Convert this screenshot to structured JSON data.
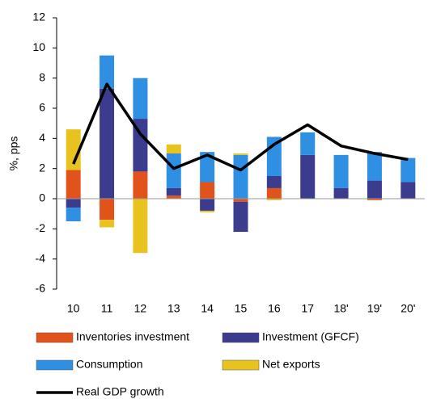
{
  "chart_data": {
    "type": "bar",
    "stacked": true,
    "y_label": "%, pps",
    "categories": [
      "10",
      "11",
      "12",
      "13",
      "14",
      "15",
      "16",
      "17",
      "18'",
      "19'",
      "20'"
    ],
    "series": [
      {
        "name": "Inventories investment",
        "color": "#e2531c",
        "values": [
          1.9,
          -1.4,
          1.8,
          0.2,
          1.1,
          -0.2,
          0.7,
          0,
          0,
          -0.1,
          0
        ]
      },
      {
        "name": "Investment (GFCF)",
        "color": "#3b3c8e",
        "values": [
          -0.6,
          7.3,
          3.5,
          0.5,
          -0.8,
          -2.0,
          0.8,
          2.9,
          0.7,
          1.2,
          1.1
        ]
      },
      {
        "name": "Consumption",
        "color": "#2f8fe3",
        "values": [
          -0.9,
          2.2,
          2.7,
          2.3,
          2.0,
          2.9,
          2.6,
          1.5,
          2.2,
          1.9,
          1.6
        ]
      },
      {
        "name": "Net exports",
        "color": "#e8c21e",
        "values": [
          2.7,
          -0.5,
          -3.6,
          0.6,
          -0.1,
          0.1,
          -0.1,
          0,
          0,
          0,
          0
        ]
      },
      {
        "name": "Real GDP growth",
        "type": "line",
        "color": "#000000",
        "values": [
          2.3,
          7.6,
          4.3,
          2.0,
          2.9,
          1.9,
          3.6,
          4.9,
          3.5,
          3.0,
          2.6
        ]
      }
    ],
    "ylim": [
      -6,
      12
    ],
    "yticks": [
      -6,
      -4,
      -2,
      0,
      2,
      4,
      6,
      8,
      10,
      12
    ]
  }
}
